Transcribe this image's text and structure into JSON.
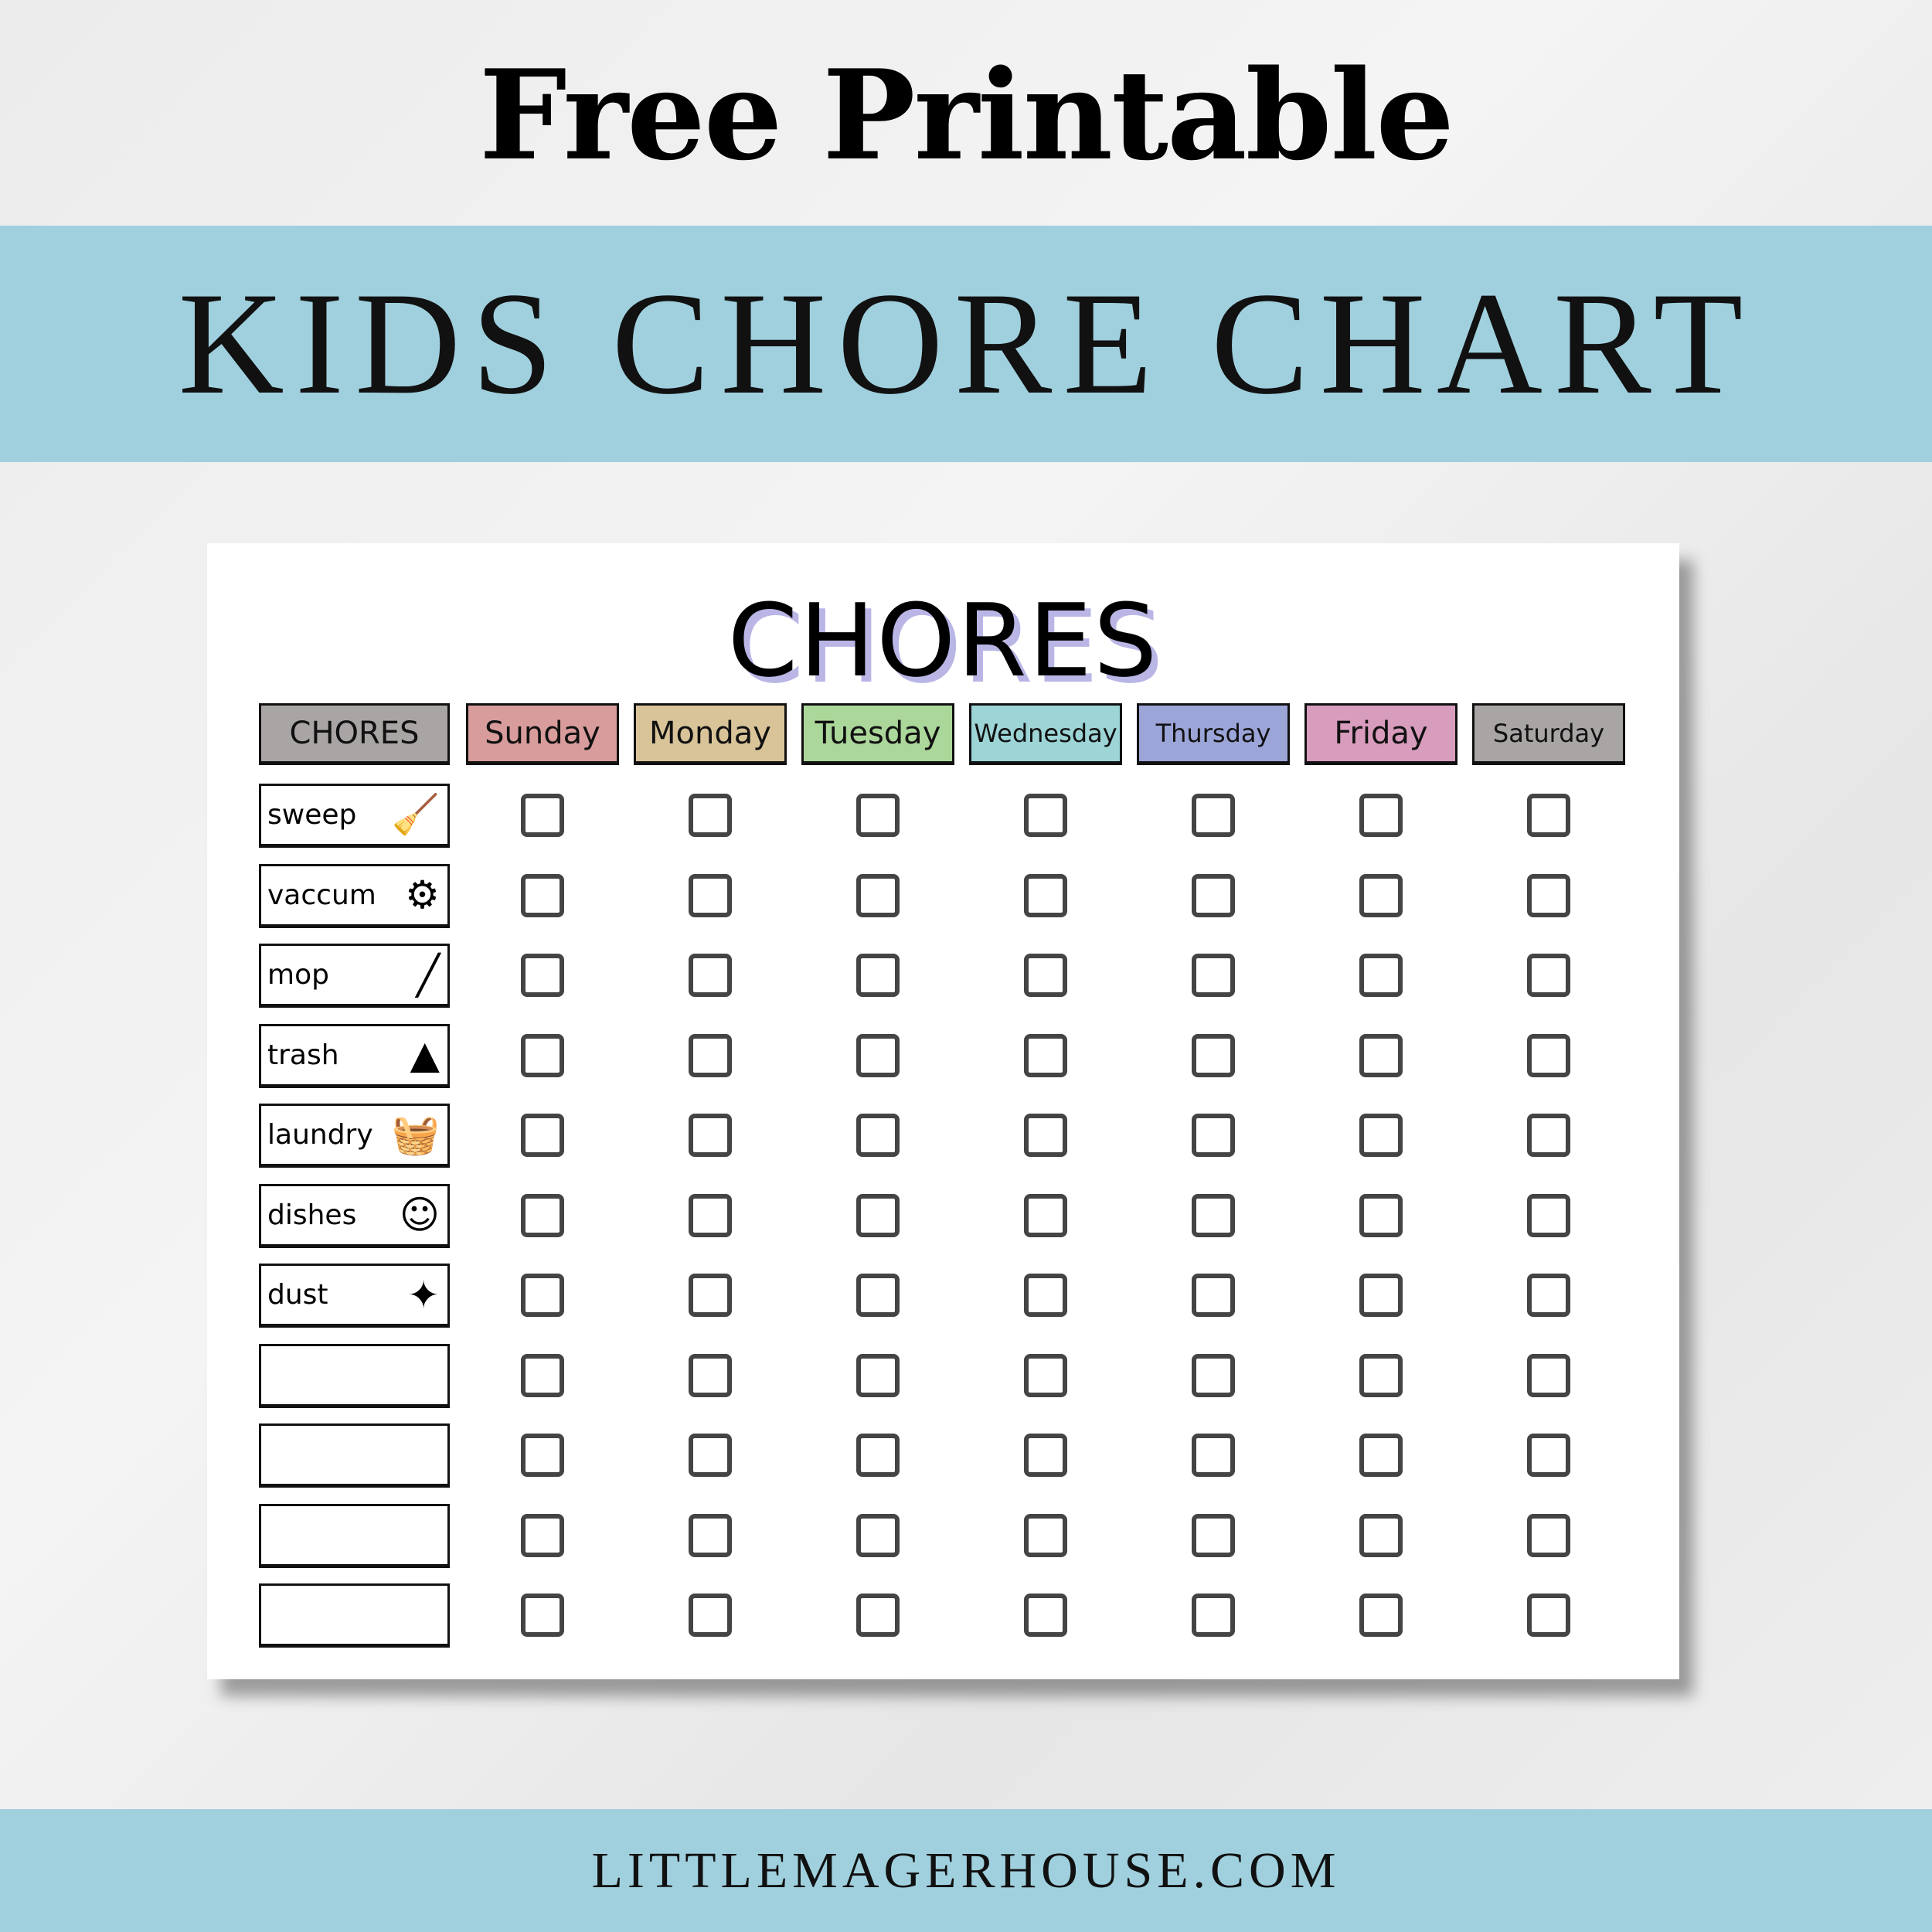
{
  "header": {
    "title": "Free Printable",
    "banner": "KIDS CHORE CHART"
  },
  "chart": {
    "title": "CHORES",
    "column_header": "CHORES",
    "days": [
      {
        "label": "Sunday",
        "color": "#d99c9c"
      },
      {
        "label": "Monday",
        "color": "#d9c49a"
      },
      {
        "label": "Tuesday",
        "color": "#acd79b"
      },
      {
        "label": "Wednesday",
        "color": "#9dd4d6"
      },
      {
        "label": "Thursday",
        "color": "#9ca5d8"
      },
      {
        "label": "Friday",
        "color": "#d89cbd"
      },
      {
        "label": "Saturday",
        "color": "#aaa5a5"
      }
    ],
    "chores": [
      {
        "label": "sweep",
        "icon": "broom-icon"
      },
      {
        "label": "vaccum",
        "icon": "vacuum-icon"
      },
      {
        "label": "mop",
        "icon": "mop-icon"
      },
      {
        "label": "trash",
        "icon": "trash-bag-icon"
      },
      {
        "label": "laundry",
        "icon": "laundry-basket-icon"
      },
      {
        "label": "dishes",
        "icon": "dishwashing-icon"
      },
      {
        "label": "dust",
        "icon": "feather-duster-icon"
      },
      {
        "label": "",
        "icon": ""
      },
      {
        "label": "",
        "icon": ""
      },
      {
        "label": "",
        "icon": ""
      },
      {
        "label": "",
        "icon": ""
      }
    ]
  },
  "footer": {
    "site": "LITTLEMAGERHOUSE.COM"
  },
  "colors": {
    "band": "#a0d0de",
    "header_chores": "#aaa5a5",
    "checkbox": "#444444"
  }
}
